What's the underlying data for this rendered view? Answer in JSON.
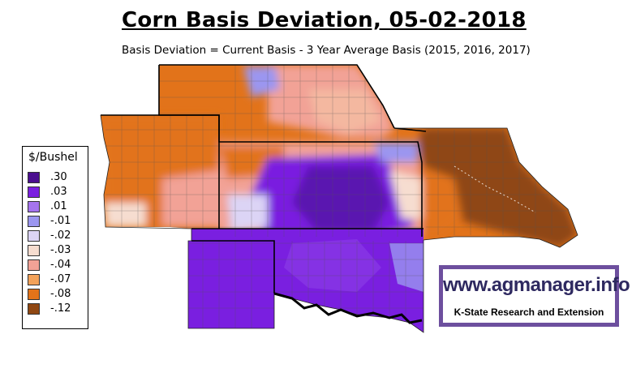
{
  "header": {
    "title": "Corn Basis Deviation, 05-02-2018",
    "subtitle": "Basis Deviation = Current Basis - 3 Year Average Basis (2015, 2016, 2017)"
  },
  "legend": {
    "title": "$/Bushel",
    "items": [
      {
        "label": ".30",
        "color": "#4b0f8f"
      },
      {
        "label": ".03",
        "color": "#7a1fe0"
      },
      {
        "label": ".01",
        "color": "#a574ee"
      },
      {
        "label": "-.01",
        "color": "#9b96f0"
      },
      {
        "label": "-.02",
        "color": "#dcd4f5"
      },
      {
        "label": "-.03",
        "color": "#f6ddd0"
      },
      {
        "label": "-.04",
        "color": "#f2a296"
      },
      {
        "label": "-.07",
        "color": "#f2a25a"
      },
      {
        "label": "-.08",
        "color": "#e2731a"
      },
      {
        "label": "-.12",
        "color": "#8f4712"
      }
    ]
  },
  "brand": {
    "url": "www.agmanager.info",
    "org": "K-State Research and Extension",
    "color": "#6d4f9e"
  }
}
